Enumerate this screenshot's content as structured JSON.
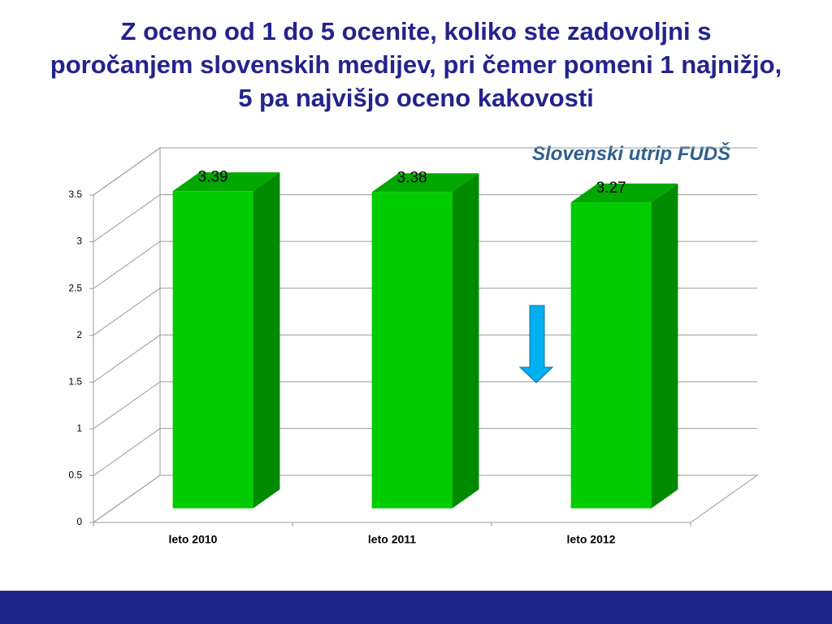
{
  "chart_data": {
    "type": "bar3d",
    "title": "Z oceno od 1 do 5 ocenite, koliko ste zadovoljni s poročanjem slovenskih medijev, pri čemer pomeni 1 najnižjo, 5 pa najvišjo oceno kakovosti",
    "logo": "Slovenski utrip FUDŠ",
    "categories": [
      "leto 2010",
      "leto 2011",
      "leto 2012"
    ],
    "values": [
      3.39,
      3.38,
      3.27
    ],
    "color": "#00cc00",
    "ylim": [
      0,
      3.5
    ],
    "yticks": [
      0,
      0.5,
      1,
      1.5,
      2,
      2.5,
      3,
      3.5
    ],
    "grid": true
  }
}
